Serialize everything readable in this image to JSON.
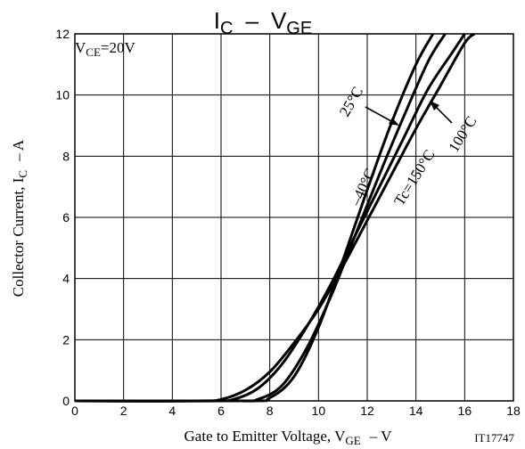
{
  "chart_data": {
    "type": "line",
    "title_main": "I",
    "title_sub": "C",
    "title_sep": "–",
    "title_main2": "V",
    "title_sub2": "GE",
    "xlabel_main": "Gate to Emitter Voltage, V",
    "xlabel_sub": "GE",
    "xlabel_unit": "–  V",
    "ylabel_main": "Collector Current, I",
    "ylabel_sub": "C",
    "ylabel_unit": "–  A",
    "xlim": [
      0,
      18
    ],
    "ylim": [
      0,
      12
    ],
    "x_ticks": [
      0,
      2,
      4,
      6,
      8,
      10,
      12,
      14,
      16,
      18
    ],
    "y_ticks": [
      0,
      2,
      4,
      6,
      8,
      10,
      12
    ],
    "grid": true,
    "condition_main": "V",
    "condition_sub": "CE",
    "condition_val": "=20V",
    "figure_id": "IT17747",
    "series": [
      {
        "name": "Tc=150°C",
        "x": [
          0,
          5.0,
          6.0,
          7.0,
          8.0,
          9.0,
          10.0,
          11.0,
          12.0,
          13.0,
          14.0,
          15.0,
          16.0,
          16.4
        ],
        "y": [
          0,
          0,
          0.05,
          0.35,
          0.95,
          1.9,
          3.0,
          4.4,
          5.9,
          7.4,
          8.9,
          10.3,
          11.7,
          12.0
        ]
      },
      {
        "name": "100°C",
        "x": [
          0,
          5.5,
          6.5,
          7.5,
          8.5,
          9.5,
          10.5,
          11.5,
          12.5,
          13.5,
          14.5,
          15.5,
          16.0
        ],
        "y": [
          0,
          0,
          0.05,
          0.4,
          1.2,
          2.4,
          3.8,
          5.4,
          7.0,
          8.6,
          10.2,
          11.4,
          12.0
        ]
      },
      {
        "name": "25°C",
        "x": [
          0,
          6.5,
          7.5,
          8.5,
          9.5,
          10.5,
          11.5,
          12.5,
          13.5,
          14.5,
          15.2
        ],
        "y": [
          0,
          0,
          0.05,
          0.5,
          1.7,
          3.4,
          5.4,
          7.4,
          9.3,
          11.1,
          12.0
        ]
      },
      {
        "name": "–40°C",
        "x": [
          0,
          7.0,
          8.0,
          9.0,
          10.0,
          11.0,
          12.0,
          13.0,
          14.0,
          14.7
        ],
        "y": [
          0,
          0,
          0.1,
          0.8,
          2.4,
          4.6,
          6.9,
          9.1,
          11.0,
          12.0
        ]
      }
    ],
    "annotations": {
      "t25": "25°C",
      "tm40": "–40°C",
      "t150": "Tc=150°C",
      "t100": "100°C"
    }
  }
}
